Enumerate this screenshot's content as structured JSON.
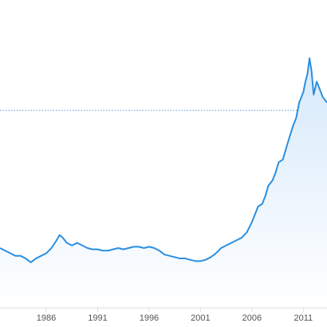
{
  "chart_data": {
    "type": "area",
    "title": "",
    "xlabel": "",
    "ylabel": "",
    "x_ticks": [
      "1986",
      "1991",
      "1996",
      "2001",
      "2006",
      "2011"
    ],
    "xlim": [
      1981.5,
      2013.3
    ],
    "ylim": [
      0,
      100
    ],
    "reference_line": {
      "y": 76,
      "style": "dotted"
    },
    "grid": false,
    "legend": "none",
    "colors": {
      "line": "#2b8fe0",
      "fill_top": "#d6e9fb",
      "fill_bottom": "#ffffff",
      "reference": "#5a9de0",
      "axis": "#dddddd"
    },
    "series": [
      {
        "x": [
          1981.5,
          1982,
          1982.5,
          1983,
          1983.5,
          1984,
          1984.5,
          1985,
          1985.5,
          1986,
          1986.5,
          1987,
          1987.3,
          1987.6,
          1988,
          1988.5,
          1989,
          1989.5,
          1990,
          1990.5,
          1991,
          1991.5,
          1992,
          1992.5,
          1993,
          1993.5,
          1994,
          1994.5,
          1995,
          1995.5,
          1996,
          1996.5,
          1997,
          1997.5,
          1998,
          1998.5,
          1999,
          1999.5,
          2000,
          2000.5,
          2001,
          2001.5,
          2002,
          2002.5,
          2003,
          2003.5,
          2004,
          2004.5,
          2005,
          2005.5,
          2006,
          2006.3,
          2006.6,
          2007,
          2007.3,
          2007.6,
          2008,
          2008.3,
          2008.6,
          2009,
          2009.3,
          2009.6,
          2010,
          2010.3,
          2010.6,
          2011,
          2011.2,
          2011.4,
          2011.6,
          2011.8,
          2012,
          2012.3,
          2012.6,
          2012.9,
          2013.3
        ],
        "values": [
          23,
          22,
          21,
          20,
          20,
          19,
          17.5,
          19,
          20,
          21,
          23,
          26,
          28,
          27,
          25,
          24,
          25,
          24,
          23,
          22.5,
          22.5,
          22,
          22,
          22.5,
          23,
          22.5,
          23,
          23.5,
          23.5,
          23,
          23.5,
          23,
          22,
          20.5,
          20,
          19.5,
          19,
          19,
          18.5,
          18,
          18,
          18.5,
          19.5,
          21,
          23,
          24,
          25,
          26,
          27,
          29,
          33,
          36,
          39,
          40,
          43,
          47,
          49,
          52,
          56,
          57,
          61,
          65,
          70,
          73,
          79,
          83,
          87,
          90,
          96,
          91,
          82,
          87,
          84,
          81,
          79
        ]
      }
    ]
  }
}
